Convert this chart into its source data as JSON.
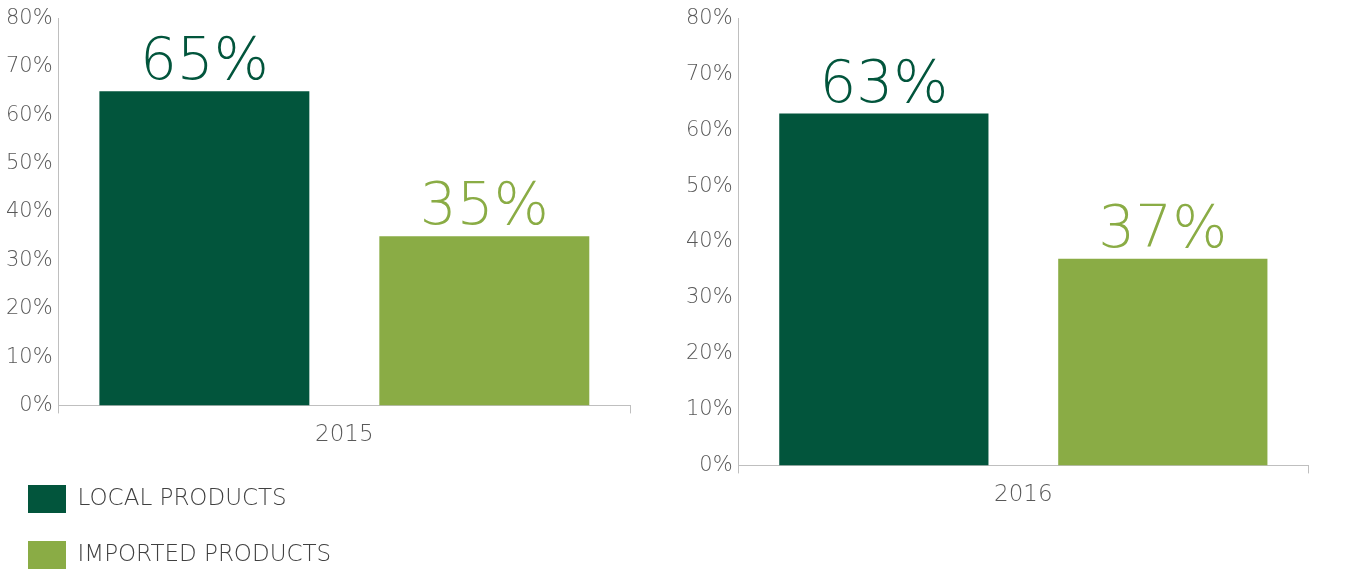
{
  "chart_data": [
    {
      "type": "bar",
      "categories": [
        "2015"
      ],
      "legend": "bottom",
      "grid": false,
      "ylim": [
        0,
        80
      ],
      "yticks": [
        {
          "value": 0,
          "label": "0%"
        },
        {
          "value": 10,
          "label": "10%"
        },
        {
          "value": 20,
          "label": "20%"
        },
        {
          "value": 30,
          "label": "30%"
        },
        {
          "value": 40,
          "label": "40%"
        },
        {
          "value": 50,
          "label": "50%"
        },
        {
          "value": 60,
          "label": "60%"
        },
        {
          "value": 70,
          "label": "70%"
        },
        {
          "value": 80,
          "label": "80%"
        }
      ],
      "series": [
        {
          "name": "LOCAL PRODUCTS",
          "color": "#02553c",
          "values": [
            65
          ],
          "value_labels": [
            "65%"
          ]
        },
        {
          "name": "IMPORTED PRODUCTS",
          "color": "#8aac45",
          "values": [
            35
          ],
          "value_labels": [
            "35%"
          ]
        }
      ]
    },
    {
      "type": "bar",
      "categories": [
        "2016"
      ],
      "grid": false,
      "ylim": [
        0,
        80
      ],
      "yticks": [
        {
          "value": 0,
          "label": "0%"
        },
        {
          "value": 10,
          "label": "10%"
        },
        {
          "value": 20,
          "label": "20%"
        },
        {
          "value": 30,
          "label": "30%"
        },
        {
          "value": 40,
          "label": "40%"
        },
        {
          "value": 50,
          "label": "50%"
        },
        {
          "value": 60,
          "label": "60%"
        },
        {
          "value": 70,
          "label": "70%"
        },
        {
          "value": 80,
          "label": "80%"
        }
      ],
      "series": [
        {
          "color": "#02553c",
          "values": [
            63
          ],
          "value_labels": [
            "63%"
          ]
        },
        {
          "color": "#8aac45",
          "values": [
            37
          ],
          "value_labels": [
            "37%"
          ]
        }
      ]
    }
  ]
}
